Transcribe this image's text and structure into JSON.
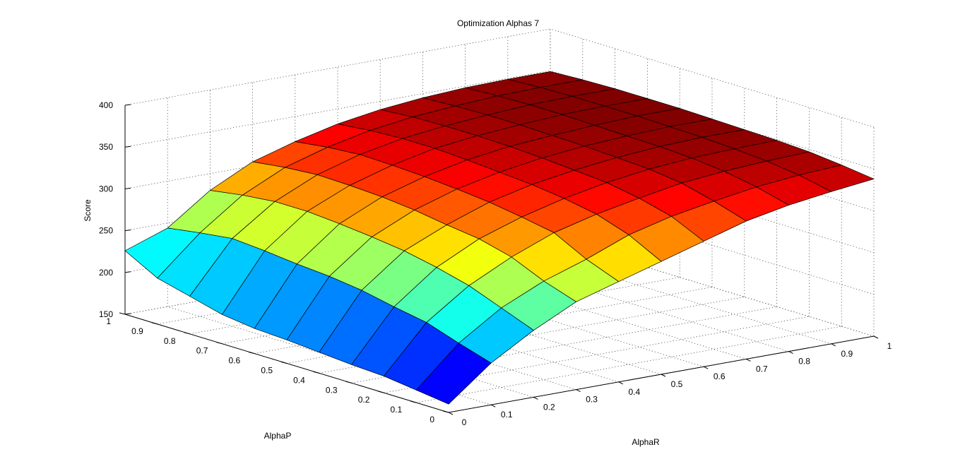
{
  "chart_data": {
    "type": "surface",
    "title": "Optimization Alphas 7",
    "xlabel": "AlphaR",
    "ylabel": "AlphaP",
    "zlabel": "Score",
    "x": [
      0,
      0.1,
      0.2,
      0.3,
      0.4,
      0.5,
      0.6,
      0.7,
      0.8,
      0.9,
      1
    ],
    "y": [
      0,
      0.1,
      0.2,
      0.3,
      0.4,
      0.5,
      0.6,
      0.7,
      0.8,
      0.9,
      1
    ],
    "xlim": [
      0,
      1
    ],
    "ylim": [
      0,
      1
    ],
    "zlim": [
      150,
      400
    ],
    "x_ticks": [
      "0",
      "0.1",
      "0.2",
      "0.3",
      "0.4",
      "0.5",
      "0.6",
      "0.7",
      "0.8",
      "0.9",
      "1"
    ],
    "y_ticks": [
      "0",
      "0.1",
      "0.2",
      "0.3",
      "0.4",
      "0.5",
      "0.6",
      "0.7",
      "0.8",
      "0.9",
      "1"
    ],
    "z_ticks": [
      "150",
      "200",
      "250",
      "300",
      "350",
      "400"
    ],
    "z_values": [
      [
        160,
        200,
        230,
        255,
        270,
        285,
        300,
        315,
        325,
        332,
        338
      ],
      [
        165,
        212,
        245,
        268,
        285,
        305,
        318,
        327,
        335,
        340,
        343
      ],
      [
        170,
        225,
        260,
        285,
        305,
        318,
        328,
        337,
        342,
        345,
        347
      ],
      [
        172,
        232,
        270,
        295,
        312,
        325,
        335,
        342,
        346,
        348,
        349
      ],
      [
        175,
        240,
        278,
        300,
        318,
        330,
        338,
        344,
        348,
        350,
        350
      ],
      [
        178,
        245,
        283,
        306,
        322,
        333,
        341,
        346,
        349,
        351,
        351
      ],
      [
        180,
        248,
        287,
        310,
        325,
        336,
        343,
        347,
        350,
        352,
        352
      ],
      [
        185,
        252,
        290,
        312,
        327,
        338,
        344,
        348,
        351,
        352,
        352
      ],
      [
        195,
        255,
        290,
        313,
        328,
        338,
        344,
        348,
        351,
        352,
        352
      ],
      [
        205,
        250,
        286,
        310,
        325,
        336,
        343,
        347,
        350,
        351,
        351
      ],
      [
        226,
        244,
        280,
        305,
        320,
        332,
        340,
        345,
        348,
        349,
        349
      ]
    ],
    "colormap": "jet",
    "grid": true
  }
}
